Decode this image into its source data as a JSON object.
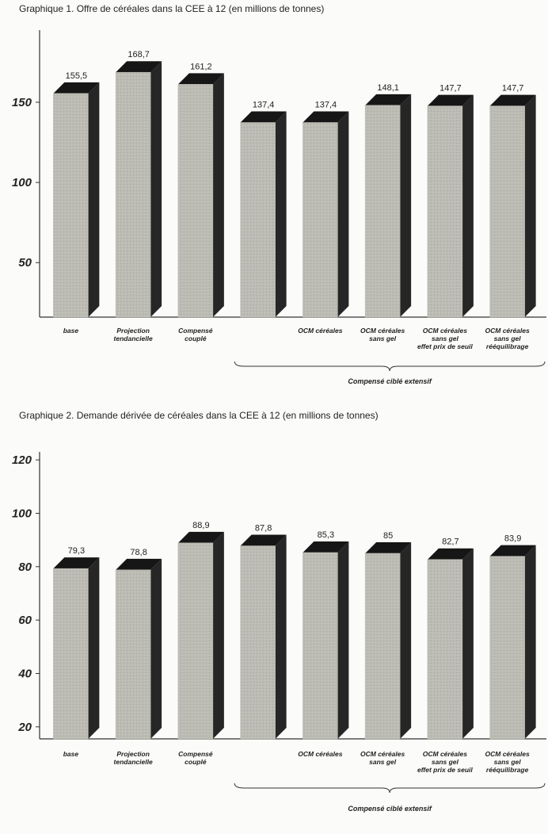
{
  "chart_data": [
    {
      "type": "bar3d",
      "title": "Graphique 1. Offre de céréales dans la CEE à 12 (en millions de tonnes)",
      "categories": [
        "base",
        "Projection\ntendancielle",
        "Compensé\ncouplé",
        null,
        "OCM céréales",
        "OCM céréales\nsans gel",
        "OCM céréales\nsans gel\neffet prix de seuil",
        "OCM céréales\nsans gel\nrééquilibrage"
      ],
      "values": [
        155.5,
        168.7,
        161.2,
        137.4,
        137.4,
        148.1,
        147.7,
        147.7
      ],
      "value_labels": [
        "155,5",
        "168,7",
        "161,2",
        "137,4",
        "137,4",
        "148,1",
        "147,7",
        "147,7"
      ],
      "color": "#bcbcb4",
      "ylim": [
        16,
        195
      ],
      "yticks": [
        50,
        100,
        150
      ],
      "annotation": "Compensé ciblé extensif"
    },
    {
      "type": "bar3d",
      "title": "Graphique 2. Demande dérivée de céréales dans la CEE à 12 (en millions de tonnes)",
      "categories": [
        "base",
        "Projection\ntendancielle",
        "Compensé\ncouplé",
        null,
        "OCM céréales",
        "OCM céréales\nsans gel",
        "OCM céréales\nsans gel\neffet prix de seuil",
        "OCM céréales\nsans gel\nrééquilibrage"
      ],
      "values": [
        79.3,
        78.8,
        88.9,
        87.8,
        85.3,
        85,
        82.7,
        83.9
      ],
      "value_labels": [
        "79,3",
        "78,8",
        "88,9",
        "87,8",
        "85,3",
        "85",
        "82,7",
        "83,9"
      ],
      "color": "#bcbcb4",
      "ylim": [
        15.5,
        123
      ],
      "yticks": [
        20,
        40,
        60,
        80,
        100,
        120
      ],
      "annotation": "Compensé ciblé extensif"
    }
  ]
}
